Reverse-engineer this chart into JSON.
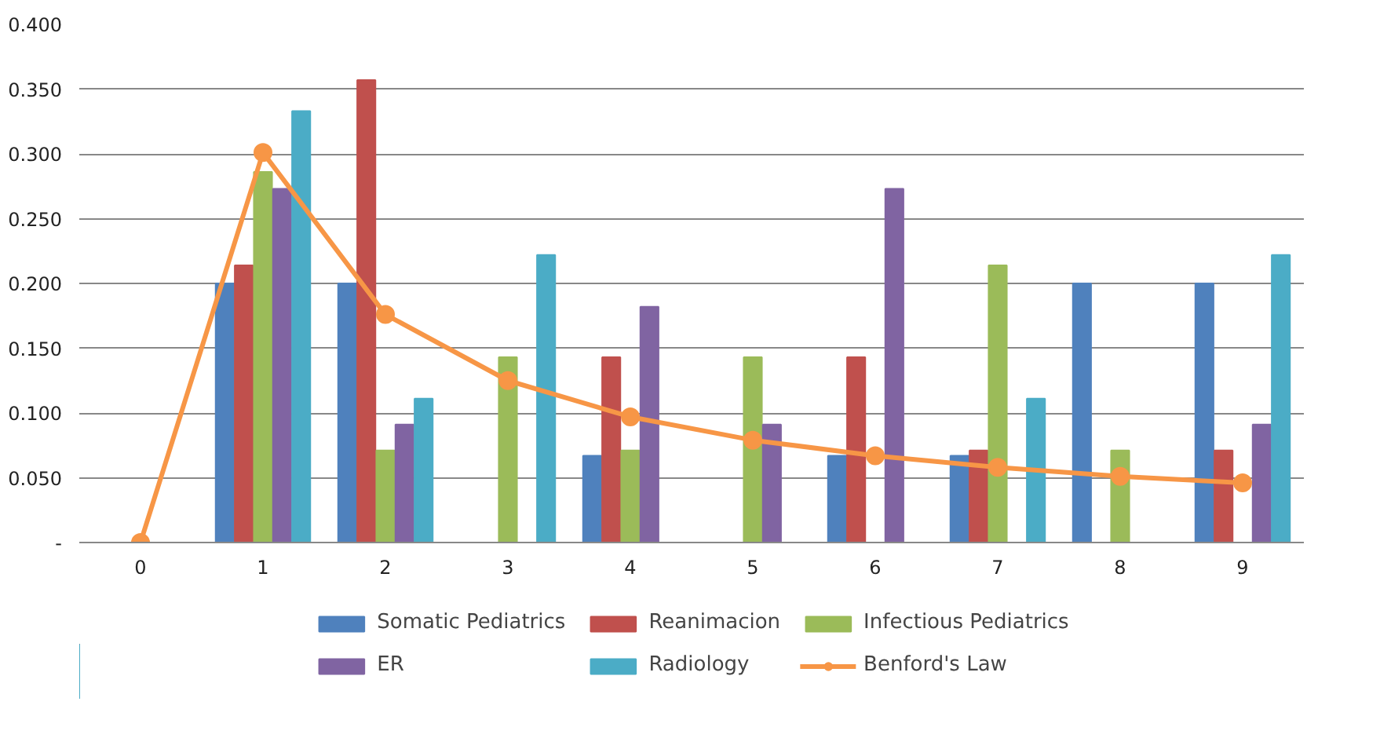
{
  "chart_data": {
    "type": "bar",
    "categories": [
      "0",
      "1",
      "2",
      "3",
      "4",
      "5",
      "6",
      "7",
      "8",
      "9"
    ],
    "series": [
      {
        "name": "Somatic Pediatrics",
        "color": "#4f81bd",
        "values": [
          0,
          0.2,
          0.2,
          0,
          0.067,
          0,
          0.067,
          0.067,
          0.2,
          0.2
        ]
      },
      {
        "name": "Reanimacion",
        "color": "#c0504d",
        "values": [
          0,
          0.214,
          0.357,
          0,
          0.143,
          0,
          0.143,
          0.071,
          0,
          0.071
        ]
      },
      {
        "name": "Infectious Pediatrics",
        "color": "#9bbb59",
        "values": [
          0,
          0.286,
          0.071,
          0.143,
          0.071,
          0.143,
          0,
          0.214,
          0.071,
          0
        ]
      },
      {
        "name": "ER",
        "color": "#8064a2",
        "values": [
          0,
          0.273,
          0.091,
          0,
          0.182,
          0.091,
          0.273,
          0,
          0,
          0.091
        ]
      },
      {
        "name": "Radiology",
        "color": "#4bacc6",
        "values": [
          0,
          0.333,
          0.111,
          0.222,
          0,
          0,
          0,
          0.111,
          0,
          0.222
        ]
      },
      {
        "name": "Benford's Law",
        "color": "#f79646",
        "type": "line",
        "marker": "circle",
        "values": [
          0,
          0.301,
          0.176,
          0.125,
          0.097,
          0.079,
          0.067,
          0.058,
          0.051,
          0.046
        ]
      }
    ],
    "ylim": [
      0,
      0.4
    ],
    "yticks": [
      {
        "value": 0,
        "label": "-"
      },
      {
        "value": 0.05,
        "label": "0.050"
      },
      {
        "value": 0.1,
        "label": "0.100"
      },
      {
        "value": 0.15,
        "label": "0.150"
      },
      {
        "value": 0.2,
        "label": "0.200"
      },
      {
        "value": 0.25,
        "label": "0.250"
      },
      {
        "value": 0.3,
        "label": "0.300"
      },
      {
        "value": 0.35,
        "label": "0.350"
      },
      {
        "value": 0.4,
        "label": "0.400"
      }
    ],
    "grid": "y",
    "legend": "bottom"
  }
}
